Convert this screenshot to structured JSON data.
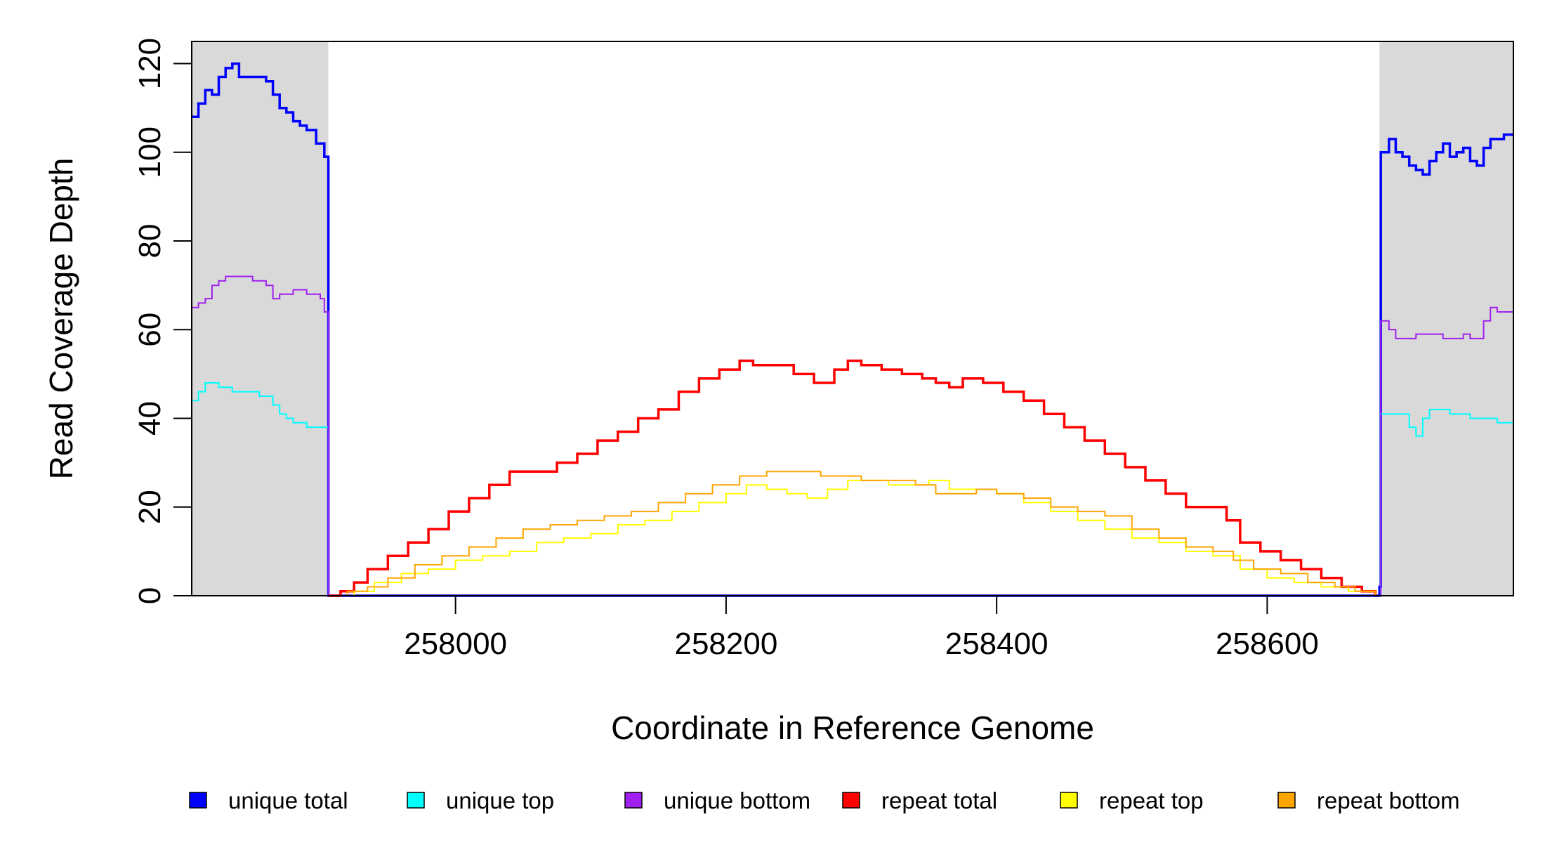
{
  "chart_data": {
    "type": "line",
    "title": "",
    "xlabel": "Coordinate in Reference Genome",
    "ylabel": "Read Coverage Depth",
    "xlim": [
      257805,
      258782
    ],
    "ylim": [
      0,
      125
    ],
    "x_ticks": [
      258000,
      258200,
      258400,
      258600
    ],
    "y_ticks": [
      0,
      20,
      40,
      60,
      80,
      100,
      120
    ],
    "x_tick_labels": [
      "258000",
      "258200",
      "258400",
      "258600"
    ],
    "y_tick_labels": [
      "0",
      "20",
      "40",
      "60",
      "80",
      "100",
      "120"
    ],
    "shaded_regions": [
      {
        "from": 257805,
        "to": 257906,
        "color": "#d9d9d9"
      },
      {
        "from": 258683,
        "to": 258782,
        "color": "#d9d9d9"
      }
    ],
    "grid": false,
    "legend_position": "bottom",
    "series": [
      {
        "name": "unique total",
        "color": "#0000ff",
        "points": [
          [
            257805,
            108
          ],
          [
            257810,
            111
          ],
          [
            257815,
            114
          ],
          [
            257820,
            113
          ],
          [
            257825,
            117
          ],
          [
            257830,
            119
          ],
          [
            257835,
            120
          ],
          [
            257840,
            117
          ],
          [
            257850,
            117
          ],
          [
            257860,
            116
          ],
          [
            257865,
            113
          ],
          [
            257870,
            110
          ],
          [
            257875,
            109
          ],
          [
            257880,
            107
          ],
          [
            257885,
            106
          ],
          [
            257890,
            105
          ],
          [
            257897,
            102
          ],
          [
            257903,
            99
          ],
          [
            257906,
            98
          ],
          [
            257906,
            0
          ],
          [
            258680,
            0
          ],
          [
            258683,
            2
          ],
          [
            258684,
            100
          ],
          [
            258690,
            103
          ],
          [
            258695,
            100
          ],
          [
            258700,
            99
          ],
          [
            258705,
            97
          ],
          [
            258710,
            96
          ],
          [
            258715,
            95
          ],
          [
            258720,
            98
          ],
          [
            258725,
            100
          ],
          [
            258730,
            102
          ],
          [
            258735,
            99
          ],
          [
            258740,
            100
          ],
          [
            258745,
            101
          ],
          [
            258750,
            98
          ],
          [
            258755,
            97
          ],
          [
            258760,
            101
          ],
          [
            258765,
            103
          ],
          [
            258770,
            103
          ],
          [
            258775,
            104
          ],
          [
            258782,
            104
          ]
        ]
      },
      {
        "name": "unique top",
        "color": "#00ffff",
        "points": [
          [
            257805,
            44
          ],
          [
            257810,
            46
          ],
          [
            257815,
            48
          ],
          [
            257825,
            47
          ],
          [
            257835,
            46
          ],
          [
            257845,
            46
          ],
          [
            257855,
            45
          ],
          [
            257865,
            43
          ],
          [
            257870,
            41
          ],
          [
            257875,
            40
          ],
          [
            257880,
            39
          ],
          [
            257890,
            38
          ],
          [
            257906,
            38
          ],
          [
            257906,
            0
          ],
          [
            258683,
            0
          ],
          [
            258684,
            41
          ],
          [
            258700,
            41
          ],
          [
            258705,
            38
          ],
          [
            258710,
            36
          ],
          [
            258715,
            40
          ],
          [
            258720,
            42
          ],
          [
            258735,
            41
          ],
          [
            258750,
            40
          ],
          [
            258770,
            39
          ],
          [
            258782,
            41
          ]
        ]
      },
      {
        "name": "unique bottom",
        "color": "#a020f0",
        "points": [
          [
            257805,
            65
          ],
          [
            257810,
            66
          ],
          [
            257815,
            67
          ],
          [
            257820,
            70
          ],
          [
            257825,
            71
          ],
          [
            257830,
            72
          ],
          [
            257840,
            72
          ],
          [
            257850,
            71
          ],
          [
            257860,
            70
          ],
          [
            257865,
            67
          ],
          [
            257870,
            68
          ],
          [
            257880,
            69
          ],
          [
            257890,
            68
          ],
          [
            257900,
            67
          ],
          [
            257903,
            64
          ],
          [
            257906,
            61
          ],
          [
            257906,
            0
          ],
          [
            258683,
            0
          ],
          [
            258684,
            62
          ],
          [
            258690,
            60
          ],
          [
            258695,
            58
          ],
          [
            258700,
            58
          ],
          [
            258710,
            59
          ],
          [
            258720,
            59
          ],
          [
            258730,
            58
          ],
          [
            258745,
            59
          ],
          [
            258750,
            58
          ],
          [
            258760,
            62
          ],
          [
            258765,
            65
          ],
          [
            258770,
            64
          ],
          [
            258782,
            63
          ]
        ]
      },
      {
        "name": "repeat total",
        "color": "#ff0000",
        "points": [
          [
            257906,
            0
          ],
          [
            257915,
            1
          ],
          [
            257925,
            3
          ],
          [
            257935,
            6
          ],
          [
            257950,
            9
          ],
          [
            257965,
            12
          ],
          [
            257980,
            15
          ],
          [
            257995,
            19
          ],
          [
            258010,
            22
          ],
          [
            258025,
            25
          ],
          [
            258040,
            28
          ],
          [
            258060,
            28
          ],
          [
            258075,
            30
          ],
          [
            258090,
            32
          ],
          [
            258105,
            35
          ],
          [
            258120,
            37
          ],
          [
            258135,
            40
          ],
          [
            258150,
            42
          ],
          [
            258165,
            46
          ],
          [
            258180,
            49
          ],
          [
            258195,
            51
          ],
          [
            258210,
            53
          ],
          [
            258220,
            52
          ],
          [
            258235,
            52
          ],
          [
            258250,
            50
          ],
          [
            258265,
            48
          ],
          [
            258280,
            51
          ],
          [
            258290,
            53
          ],
          [
            258300,
            52
          ],
          [
            258315,
            51
          ],
          [
            258330,
            50
          ],
          [
            258345,
            49
          ],
          [
            258355,
            48
          ],
          [
            258365,
            47
          ],
          [
            258375,
            49
          ],
          [
            258390,
            48
          ],
          [
            258405,
            46
          ],
          [
            258420,
            44
          ],
          [
            258435,
            41
          ],
          [
            258450,
            38
          ],
          [
            258465,
            35
          ],
          [
            258480,
            32
          ],
          [
            258495,
            29
          ],
          [
            258510,
            26
          ],
          [
            258525,
            23
          ],
          [
            258540,
            20
          ],
          [
            258560,
            20
          ],
          [
            258570,
            17
          ],
          [
            258580,
            12
          ],
          [
            258595,
            10
          ],
          [
            258610,
            8
          ],
          [
            258625,
            6
          ],
          [
            258640,
            4
          ],
          [
            258655,
            2
          ],
          [
            258670,
            1
          ],
          [
            258680,
            0
          ]
        ]
      },
      {
        "name": "repeat top",
        "color": "#ffff00",
        "points": [
          [
            257906,
            0
          ],
          [
            257925,
            1
          ],
          [
            257940,
            3
          ],
          [
            257960,
            5
          ],
          [
            257980,
            6
          ],
          [
            258000,
            8
          ],
          [
            258020,
            9
          ],
          [
            258040,
            10
          ],
          [
            258060,
            12
          ],
          [
            258080,
            13
          ],
          [
            258100,
            14
          ],
          [
            258120,
            16
          ],
          [
            258140,
            17
          ],
          [
            258160,
            19
          ],
          [
            258180,
            21
          ],
          [
            258200,
            23
          ],
          [
            258215,
            25
          ],
          [
            258230,
            24
          ],
          [
            258245,
            23
          ],
          [
            258260,
            22
          ],
          [
            258275,
            24
          ],
          [
            258290,
            26
          ],
          [
            258305,
            26
          ],
          [
            258320,
            25
          ],
          [
            258335,
            25
          ],
          [
            258350,
            26
          ],
          [
            258365,
            24
          ],
          [
            258380,
            24
          ],
          [
            258400,
            23
          ],
          [
            258420,
            21
          ],
          [
            258440,
            19
          ],
          [
            258460,
            17
          ],
          [
            258480,
            15
          ],
          [
            258500,
            13
          ],
          [
            258520,
            12
          ],
          [
            258540,
            10
          ],
          [
            258560,
            9
          ],
          [
            258580,
            6
          ],
          [
            258600,
            4
          ],
          [
            258620,
            3
          ],
          [
            258640,
            2
          ],
          [
            258660,
            1
          ],
          [
            258680,
            0
          ]
        ]
      },
      {
        "name": "repeat bottom",
        "color": "#ffa500",
        "points": [
          [
            257906,
            0
          ],
          [
            257920,
            1
          ],
          [
            257935,
            2
          ],
          [
            257950,
            4
          ],
          [
            257970,
            7
          ],
          [
            257990,
            9
          ],
          [
            258010,
            11
          ],
          [
            258030,
            13
          ],
          [
            258050,
            15
          ],
          [
            258070,
            16
          ],
          [
            258090,
            17
          ],
          [
            258110,
            18
          ],
          [
            258130,
            19
          ],
          [
            258150,
            21
          ],
          [
            258170,
            23
          ],
          [
            258190,
            25
          ],
          [
            258210,
            27
          ],
          [
            258230,
            28
          ],
          [
            258250,
            28
          ],
          [
            258270,
            27
          ],
          [
            258285,
            27
          ],
          [
            258300,
            26
          ],
          [
            258320,
            26
          ],
          [
            258340,
            25
          ],
          [
            258355,
            23
          ],
          [
            258370,
            23
          ],
          [
            258385,
            24
          ],
          [
            258400,
            23
          ],
          [
            258420,
            22
          ],
          [
            258440,
            20
          ],
          [
            258460,
            19
          ],
          [
            258480,
            18
          ],
          [
            258500,
            15
          ],
          [
            258520,
            13
          ],
          [
            258540,
            11
          ],
          [
            258560,
            10
          ],
          [
            258575,
            8
          ],
          [
            258590,
            6
          ],
          [
            258610,
            5
          ],
          [
            258630,
            3
          ],
          [
            258650,
            2
          ],
          [
            258665,
            1
          ],
          [
            258680,
            0
          ]
        ]
      }
    ]
  }
}
